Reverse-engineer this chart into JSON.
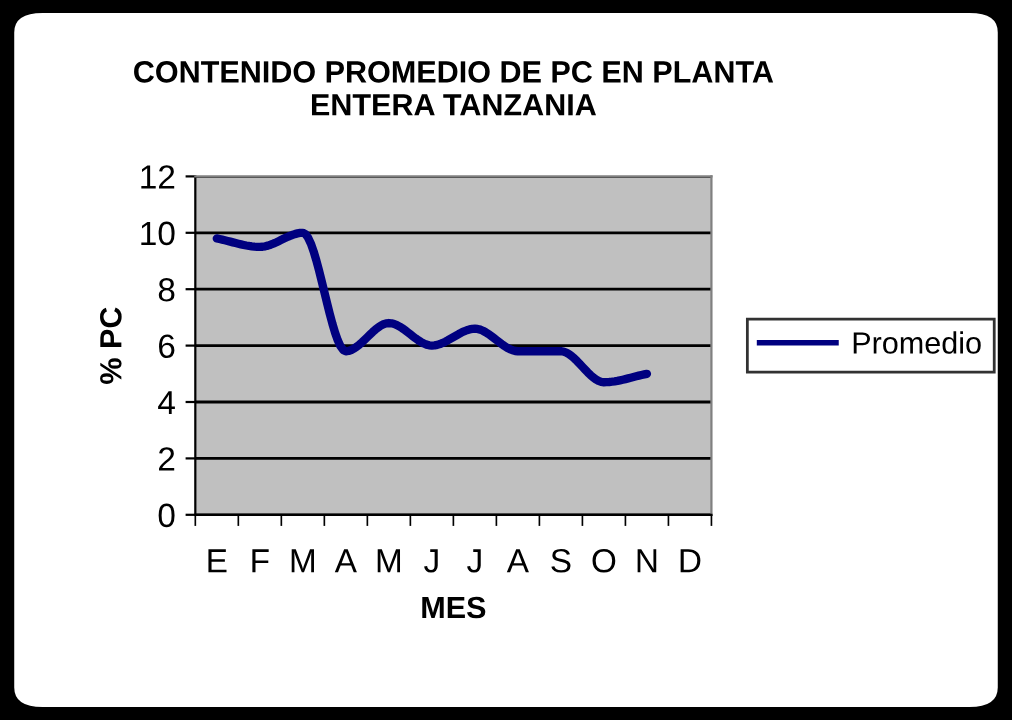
{
  "chart_data": {
    "type": "line",
    "title": "CONTENIDO PROMEDIO DE PC EN PLANTA\nENTERA TANZANIA",
    "xlabel": "MES",
    "ylabel": "% PC",
    "categories": [
      "E",
      "F",
      "M",
      "A",
      "M",
      "J",
      "J",
      "A",
      "S",
      "O",
      "N",
      "D"
    ],
    "series": [
      {
        "name": "Promedio",
        "color": "#000080",
        "values": [
          9.8,
          9.5,
          10.0,
          5.8,
          6.8,
          6.0,
          6.6,
          5.8,
          5.8,
          4.7,
          5.0,
          null
        ]
      }
    ],
    "ylim": [
      0,
      12
    ],
    "yticks": [
      0,
      2,
      4,
      6,
      8,
      10,
      12
    ],
    "grid": "y",
    "legend": "right",
    "marker": "none",
    "line_style": "solid"
  }
}
